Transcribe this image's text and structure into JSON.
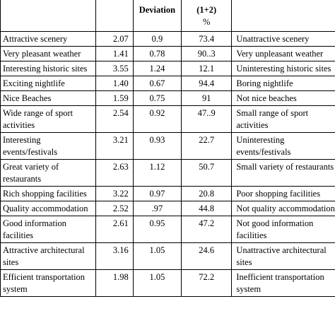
{
  "header": {
    "col1": "",
    "col2": "",
    "col3": "Deviation",
    "col4_line1": "(1+2)",
    "col4_line2": "%",
    "col5": ""
  },
  "rows": [
    {
      "attribute": "Attractive scenery",
      "mean": "2.07",
      "deviation": "0.9",
      "percent": "73.4",
      "negative": "Unattractive scenery",
      "lines": 1
    },
    {
      "attribute": "Very pleasant weather",
      "mean": "1.41",
      "deviation": "0.78",
      "percent": "90..3",
      "negative": "Very unpleasant weather",
      "lines": 1
    },
    {
      "attribute": "Interesting historic sites",
      "mean": "3.55",
      "deviation": "1.24",
      "percent": "12.1",
      "negative": "Uninteresting historic sites",
      "lines": 1
    },
    {
      "attribute": "Exciting nightlife",
      "mean": "1.40",
      "deviation": "0.67",
      "percent": "94.4",
      "negative": "Boring nightlife",
      "lines": 1
    },
    {
      "attribute": "Nice Beaches",
      "mean": "1.59",
      "deviation": "0.75",
      "percent": "91",
      "negative": "Not nice beaches",
      "lines": 1
    },
    {
      "attribute": "Wide range of sport activities",
      "mean": "2.54",
      "deviation": "0.92",
      "percent": "47..9",
      "negative": "Small range of sport activities",
      "lines": 2
    },
    {
      "attribute": "Interesting events/festivals",
      "mean": "3.21",
      "deviation": "0.93",
      "percent": "22.7",
      "negative": "Uninteresting events/festivals",
      "lines": 2
    },
    {
      "attribute": "Great variety of restaurants",
      "mean": "2.63",
      "deviation": "1.12",
      "percent": "50.7",
      "negative": "Small variety of restaurants",
      "lines": 2
    },
    {
      "attribute": "Rich shopping facilities",
      "mean": "3.22",
      "deviation": "0.97",
      "percent": "20.8",
      "negative": "Poor shopping  facilities",
      "lines": 1
    },
    {
      "attribute": "Quality accommodation",
      "mean": "2.52",
      "deviation": ".97",
      "percent": "44.8",
      "negative": "Not quality accommodation",
      "lines": 1
    },
    {
      "attribute": "Good information facilities",
      "mean": "2.61",
      "deviation": "0.95",
      "percent": "47.2",
      "negative": "Not good information facilities",
      "lines": 2
    },
    {
      "attribute": "Attractive architectural sites",
      "mean": "3.16",
      "deviation": "1.05",
      "percent": "24.6",
      "negative": "Unattractive architectural sites",
      "lines": 2
    },
    {
      "attribute": "Efficient transportation system",
      "mean": "1.98",
      "deviation": "1.05",
      "percent": "72.2",
      "negative": "Inefficient transportation system",
      "lines": 2
    }
  ]
}
